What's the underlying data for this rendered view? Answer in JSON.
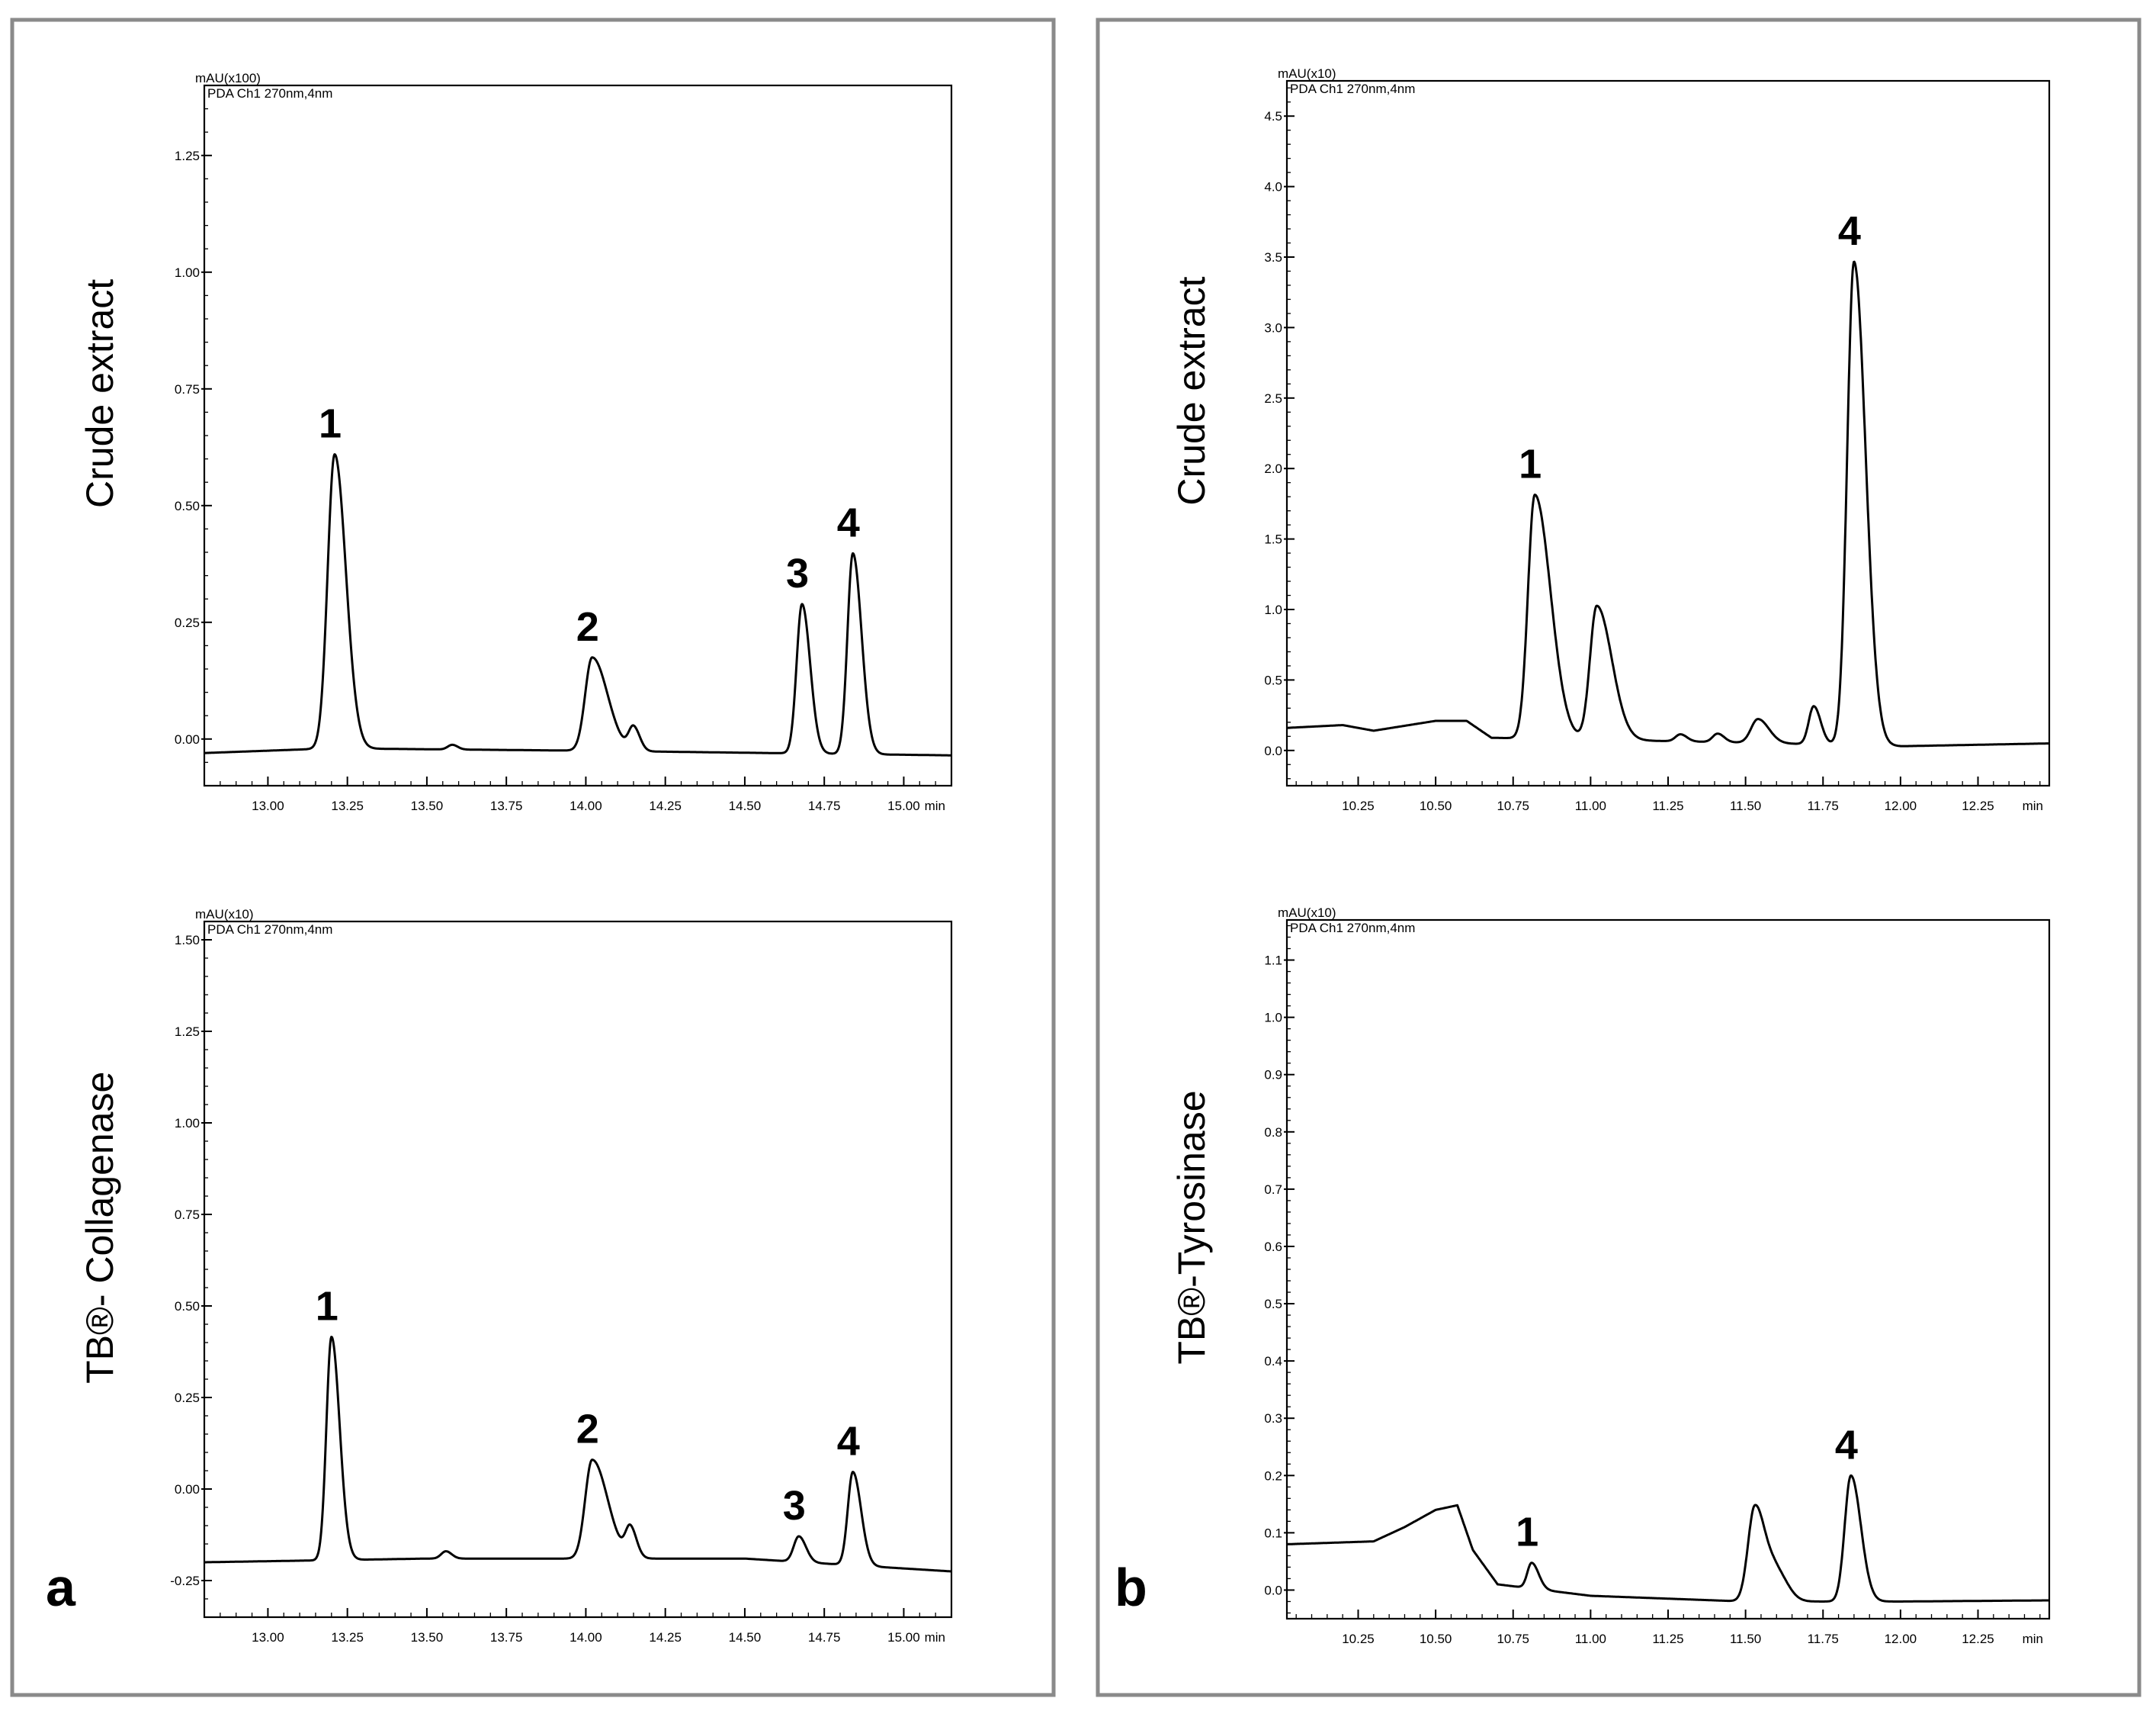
{
  "panels": [
    {
      "label": "a",
      "frame_color": "#8a8a8a"
    },
    {
      "label": "b",
      "frame_color": "#8a8a8a"
    }
  ],
  "chart_data": [
    {
      "type": "line",
      "panel": "a",
      "ylabel": "Crude extract",
      "unit_label": "mAU(x100)",
      "channel_label": "PDA Ch1 270nm,4nm",
      "x_unit": "min",
      "xlim": [
        12.8,
        15.15
      ],
      "ylim": [
        -0.1,
        1.4
      ],
      "xticks": [
        "13.00",
        "13.25",
        "13.50",
        "13.75",
        "14.00",
        "14.25",
        "14.50",
        "14.75",
        "15.00"
      ],
      "yticks": [
        "0.00",
        "0.25",
        "0.50",
        "0.75",
        "1.00",
        "1.25"
      ],
      "baseline": [
        [
          12.8,
          -0.03
        ],
        [
          13.2,
          -0.02
        ],
        [
          14.0,
          -0.025
        ],
        [
          15.15,
          -0.035
        ]
      ],
      "peaks": [
        {
          "label": "1",
          "rt": 13.21,
          "height": 0.63,
          "sigma": 0.022,
          "tail": 1.6
        },
        {
          "label": "",
          "rt": 13.58,
          "height": 0.01,
          "sigma": 0.014,
          "tail": 1.2
        },
        {
          "label": "2",
          "rt": 14.02,
          "height": 0.2,
          "sigma": 0.022,
          "tail": 2.2
        },
        {
          "label": "",
          "rt": 14.15,
          "height": 0.05,
          "sigma": 0.015,
          "tail": 1.3
        },
        {
          "label": "3",
          "rt": 14.68,
          "height": 0.32,
          "sigma": 0.017,
          "tail": 1.5
        },
        {
          "label": "4",
          "rt": 14.84,
          "height": 0.43,
          "sigma": 0.017,
          "tail": 1.6
        }
      ]
    },
    {
      "type": "line",
      "panel": "a",
      "ylabel": "TB®- Collagenase",
      "unit_label": "mAU(x10)",
      "channel_label": "PDA Ch1 270nm,4nm",
      "x_unit": "min",
      "xlim": [
        12.8,
        15.15
      ],
      "ylim": [
        -0.35,
        1.55
      ],
      "xticks": [
        "13.00",
        "13.25",
        "13.50",
        "13.75",
        "14.00",
        "14.25",
        "14.50",
        "14.75",
        "15.00"
      ],
      "yticks": [
        "-0.25",
        "0.00",
        "0.25",
        "0.50",
        "0.75",
        "1.00",
        "1.25",
        "1.50"
      ],
      "baseline": [
        [
          12.8,
          -0.2
        ],
        [
          13.5,
          -0.19
        ],
        [
          14.5,
          -0.19
        ],
        [
          15.15,
          -0.225
        ]
      ],
      "peaks": [
        {
          "label": "1",
          "rt": 13.2,
          "height": 0.61,
          "sigma": 0.016,
          "tail": 1.6
        },
        {
          "label": "",
          "rt": 13.56,
          "height": 0.02,
          "sigma": 0.015,
          "tail": 1.2
        },
        {
          "label": "2",
          "rt": 14.02,
          "height": 0.27,
          "sigma": 0.022,
          "tail": 2.2
        },
        {
          "label": "",
          "rt": 14.14,
          "height": 0.08,
          "sigma": 0.015,
          "tail": 1.3
        },
        {
          "label": "3",
          "rt": 14.67,
          "height": 0.07,
          "sigma": 0.016,
          "tail": 1.4
        },
        {
          "label": "4",
          "rt": 14.84,
          "height": 0.255,
          "sigma": 0.016,
          "tail": 1.6
        }
      ]
    },
    {
      "type": "line",
      "panel": "b",
      "ylabel": "Crude extract",
      "unit_label": "mAU(x10)",
      "channel_label": "PDA Ch1 270nm,4nm",
      "x_unit": "min",
      "xlim": [
        10.02,
        12.48
      ],
      "ylim": [
        -0.25,
        4.75
      ],
      "xticks": [
        "10.25",
        "10.50",
        "10.75",
        "11.00",
        "11.25",
        "11.50",
        "11.75",
        "12.00",
        "12.25"
      ],
      "yticks": [
        "0.0",
        "0.5",
        "1.0",
        "1.5",
        "2.0",
        "2.5",
        "3.0",
        "3.5",
        "4.0",
        "4.5"
      ],
      "baseline": [
        [
          10.02,
          0.16
        ],
        [
          10.2,
          0.18
        ],
        [
          10.3,
          0.14
        ],
        [
          10.5,
          0.21
        ],
        [
          10.6,
          0.21
        ],
        [
          10.68,
          0.09
        ],
        [
          11.4,
          0.06
        ],
        [
          12.0,
          0.03
        ],
        [
          12.48,
          0.05
        ]
      ],
      "peaks": [
        {
          "label": "1",
          "rt": 10.82,
          "height": 1.73,
          "sigma": 0.022,
          "tail": 2.3
        },
        {
          "label": "",
          "rt": 11.02,
          "height": 0.95,
          "sigma": 0.022,
          "tail": 2.2
        },
        {
          "label": "",
          "rt": 11.29,
          "height": 0.05,
          "sigma": 0.016,
          "tail": 1.3
        },
        {
          "label": "",
          "rt": 11.41,
          "height": 0.06,
          "sigma": 0.016,
          "tail": 1.3
        },
        {
          "label": "",
          "rt": 11.54,
          "height": 0.17,
          "sigma": 0.022,
          "tail": 1.6
        },
        {
          "label": "",
          "rt": 11.72,
          "height": 0.27,
          "sigma": 0.016,
          "tail": 1.4
        },
        {
          "label": "4",
          "rt": 11.85,
          "height": 3.43,
          "sigma": 0.022,
          "tail": 1.7
        }
      ]
    },
    {
      "type": "line",
      "panel": "b",
      "ylabel": "TB®-Tyrosinase",
      "unit_label": "mAU(x10)",
      "channel_label": "PDA Ch1 270nm,4nm",
      "x_unit": "min",
      "xlim": [
        10.02,
        12.48
      ],
      "ylim": [
        -0.05,
        1.17
      ],
      "xticks": [
        "10.25",
        "10.50",
        "10.75",
        "11.00",
        "11.25",
        "11.50",
        "11.75",
        "12.00",
        "12.25"
      ],
      "yticks": [
        "0.0",
        "0.1",
        "0.2",
        "0.3",
        "0.4",
        "0.5",
        "0.6",
        "0.7",
        "0.8",
        "0.9",
        "1.0",
        "1.1"
      ],
      "baseline": [
        [
          10.02,
          0.08
        ],
        [
          10.3,
          0.085
        ],
        [
          10.4,
          0.11
        ],
        [
          10.5,
          0.14
        ],
        [
          10.57,
          0.148
        ],
        [
          10.62,
          0.07
        ],
        [
          10.7,
          0.01
        ],
        [
          11.0,
          -0.01
        ],
        [
          11.5,
          -0.02
        ],
        [
          11.6,
          -0.02
        ],
        [
          12.0,
          -0.02
        ],
        [
          12.48,
          -0.018
        ]
      ],
      "peaks": [
        {
          "label": "1",
          "rt": 10.81,
          "height": 0.045,
          "sigma": 0.014,
          "tail": 1.6
        },
        {
          "label": "",
          "rt": 11.53,
          "height": 0.165,
          "sigma": 0.022,
          "tail": 1.5
        },
        {
          "label": "",
          "rt": 11.6,
          "height": 0.05,
          "sigma": 0.03,
          "tail": 1.2
        },
        {
          "label": "4",
          "rt": 11.84,
          "height": 0.22,
          "sigma": 0.02,
          "tail": 1.6
        }
      ]
    }
  ]
}
